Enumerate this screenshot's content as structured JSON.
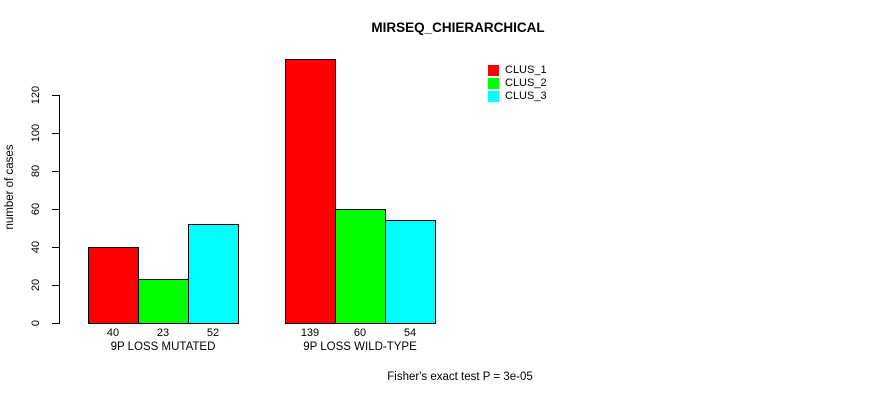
{
  "chart_data": {
    "type": "bar",
    "title": "MIRSEQ_CHIERARCHICAL",
    "ylabel": "number of cases",
    "xlabel": "",
    "categories": [
      "9P LOSS MUTATED",
      "9P LOSS WILD-TYPE"
    ],
    "series": [
      {
        "name": "CLUS_1",
        "color": "#ff0000",
        "values": [
          40,
          139
        ]
      },
      {
        "name": "CLUS_2",
        "color": "#00ff00",
        "values": [
          23,
          60
        ]
      },
      {
        "name": "CLUS_3",
        "color": "#00ffff",
        "values": [
          52,
          54
        ]
      }
    ],
    "yticks": [
      0,
      20,
      40,
      60,
      80,
      100,
      120
    ],
    "ylim": [
      0,
      120
    ],
    "grid": false,
    "legend_position": "top-right",
    "bar_border_color": "#000000",
    "background_color": "#ffffff",
    "bar_value_labels": true,
    "annotation": "Fisher's exact test P = 3e-05"
  }
}
